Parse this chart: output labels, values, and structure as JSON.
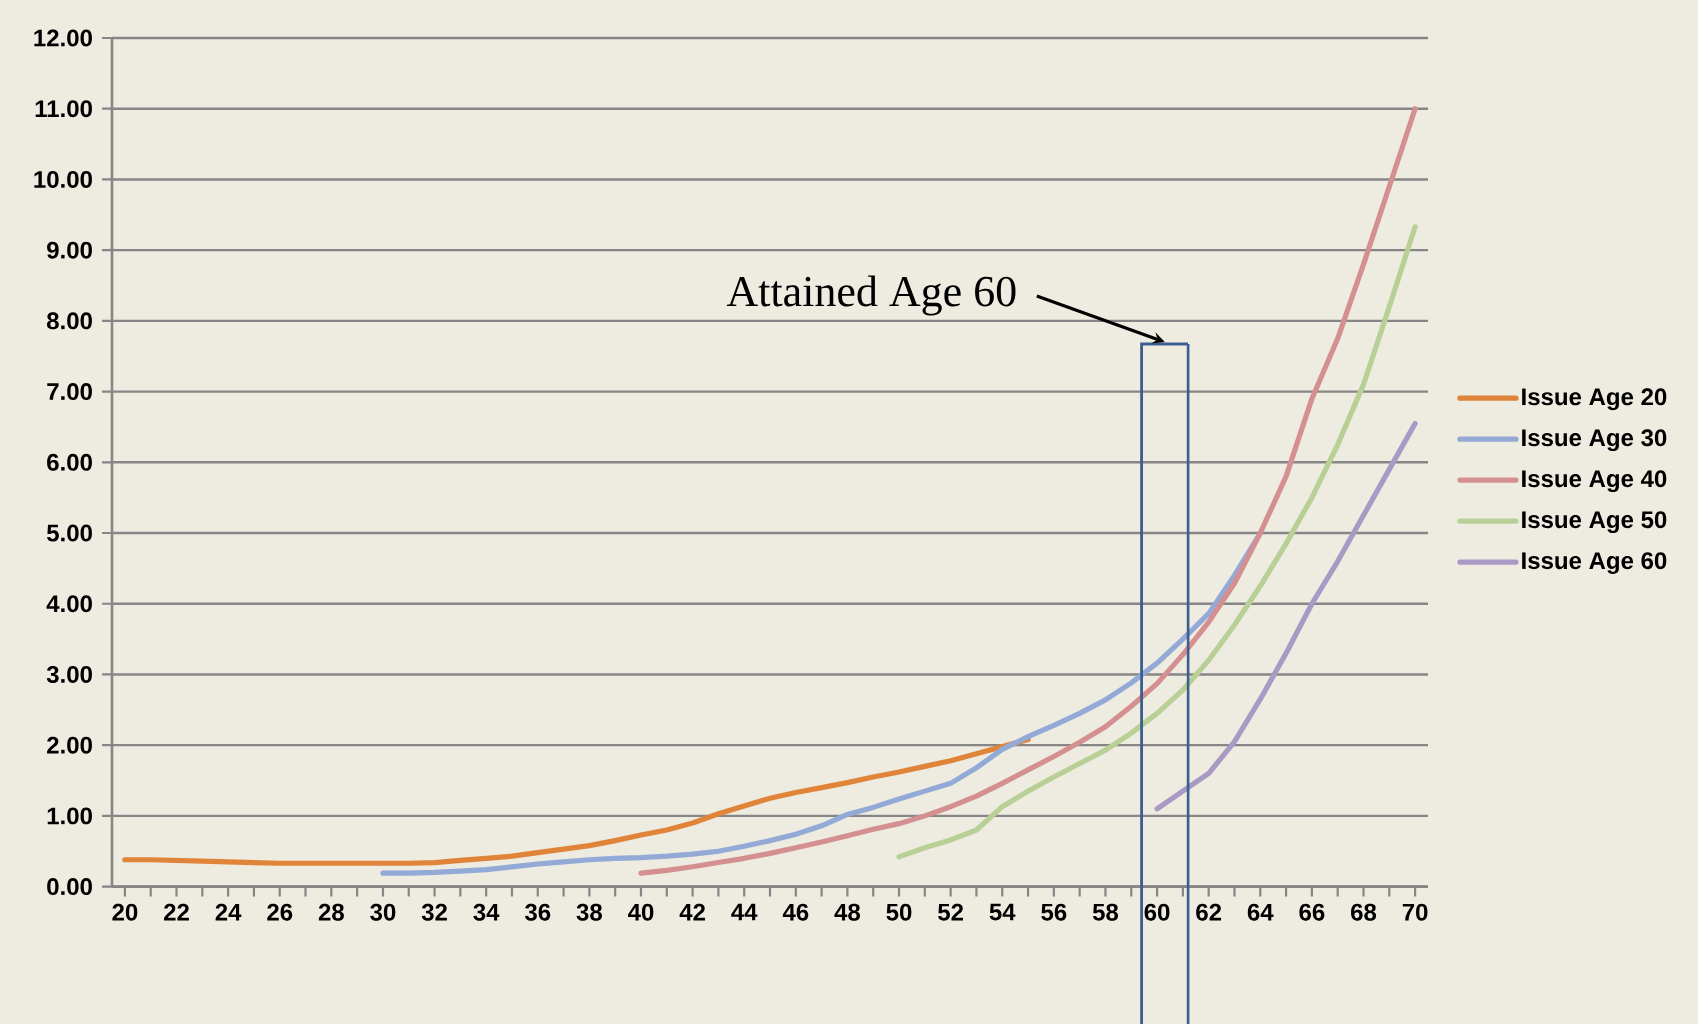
{
  "chart_data": {
    "type": "line",
    "xlim": [
      19.5,
      70.5
    ],
    "xticks": [
      20,
      22,
      24,
      26,
      28,
      30,
      32,
      34,
      36,
      38,
      40,
      42,
      44,
      46,
      48,
      50,
      52,
      54,
      56,
      58,
      60,
      62,
      64,
      66,
      68,
      70
    ],
    "ylim": [
      0,
      12
    ],
    "yticks": [
      {
        "value": 0,
        "label": "0.00"
      },
      {
        "value": 1,
        "label": "1.00"
      },
      {
        "value": 2,
        "label": "2.00"
      },
      {
        "value": 3,
        "label": "3.00"
      },
      {
        "value": 4,
        "label": "4.00"
      },
      {
        "value": 5,
        "label": "5.00"
      },
      {
        "value": 6,
        "label": "6.00"
      },
      {
        "value": 7,
        "label": "7.00"
      },
      {
        "value": 8,
        "label": "8.00"
      },
      {
        "value": 9,
        "label": "9.00"
      },
      {
        "value": 10,
        "label": "10.00"
      },
      {
        "value": 11,
        "label": "11.00"
      },
      {
        "value": 12,
        "label": "12.00"
      }
    ],
    "grid": "y",
    "legend": "right",
    "series": [
      {
        "name": "Issue Age 20",
        "color": "#E0843A",
        "x": [
          20,
          21,
          22,
          23,
          24,
          25,
          26,
          27,
          28,
          29,
          30,
          31,
          32,
          33,
          34,
          35,
          36,
          37,
          38,
          39,
          40,
          41,
          42,
          43,
          44,
          45,
          46,
          47,
          48,
          49,
          50,
          51,
          52,
          53,
          54,
          55
        ],
        "values": [
          0.38,
          0.38,
          0.37,
          0.36,
          0.35,
          0.34,
          0.33,
          0.33,
          0.33,
          0.33,
          0.33,
          0.33,
          0.34,
          0.37,
          0.4,
          0.43,
          0.48,
          0.53,
          0.58,
          0.65,
          0.73,
          0.8,
          0.9,
          1.03,
          1.14,
          1.25,
          1.33,
          1.4,
          1.47,
          1.55,
          1.62,
          1.7,
          1.78,
          1.88,
          1.98,
          2.08
        ]
      },
      {
        "name": "Issue Age 30",
        "color": "#93A9D6",
        "x": [
          30,
          31,
          32,
          33,
          34,
          35,
          36,
          37,
          38,
          39,
          40,
          41,
          42,
          43,
          44,
          45,
          46,
          47,
          48,
          49,
          50,
          51,
          52,
          53,
          54,
          55,
          56,
          57,
          58,
          59,
          60,
          61,
          62,
          63,
          64
        ],
        "values": [
          0.19,
          0.19,
          0.2,
          0.22,
          0.24,
          0.28,
          0.32,
          0.35,
          0.38,
          0.4,
          0.41,
          0.43,
          0.46,
          0.5,
          0.57,
          0.65,
          0.74,
          0.86,
          1.02,
          1.12,
          1.24,
          1.35,
          1.46,
          1.68,
          1.94,
          2.12,
          2.28,
          2.45,
          2.64,
          2.88,
          3.16,
          3.5,
          3.86,
          4.4,
          5.0
        ]
      },
      {
        "name": "Issue Age 40",
        "color": "#D49090",
        "x": [
          40,
          41,
          42,
          43,
          44,
          45,
          46,
          47,
          48,
          49,
          50,
          51,
          52,
          53,
          54,
          55,
          56,
          57,
          58,
          59,
          60,
          61,
          62,
          63,
          64,
          65,
          66,
          67,
          68,
          69,
          70
        ],
        "values": [
          0.19,
          0.23,
          0.28,
          0.34,
          0.4,
          0.47,
          0.55,
          0.63,
          0.72,
          0.81,
          0.89,
          1.0,
          1.13,
          1.28,
          1.46,
          1.65,
          1.84,
          2.04,
          2.26,
          2.55,
          2.87,
          3.28,
          3.74,
          4.29,
          5.0,
          5.8,
          6.9,
          7.75,
          8.8,
          9.9,
          11.0
        ]
      },
      {
        "name": "Issue Age 50",
        "color": "#B8D096",
        "x": [
          50,
          51,
          52,
          53,
          54,
          55,
          56,
          57,
          58,
          59,
          60,
          61,
          62,
          63,
          64,
          65,
          66,
          67,
          68,
          69,
          70
        ],
        "values": [
          0.42,
          0.55,
          0.66,
          0.8,
          1.13,
          1.35,
          1.55,
          1.74,
          1.93,
          2.17,
          2.45,
          2.78,
          3.2,
          3.7,
          4.25,
          4.85,
          5.5,
          6.25,
          7.1,
          8.2,
          9.33
        ]
      },
      {
        "name": "Issue Age 60",
        "color": "#A89AC5",
        "x": [
          60,
          61,
          62,
          63,
          64,
          65,
          66,
          67,
          68,
          69,
          70
        ],
        "values": [
          1.1,
          1.35,
          1.6,
          2.05,
          2.65,
          3.3,
          4.0,
          4.6,
          5.25,
          5.9,
          6.55
        ]
      }
    ],
    "ref_lines": [
      {
        "axis": "x",
        "value": 59.4,
        "label": "Attained Age 60",
        "color": "#3D5F8F"
      },
      {
        "axis": "x",
        "value": 61.2,
        "color": "#3D5F8F"
      }
    ]
  }
}
